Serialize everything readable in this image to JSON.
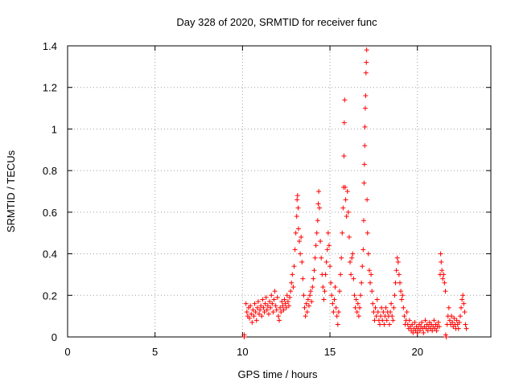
{
  "chart_data": {
    "type": "scatter",
    "title": "Day 328 of 2020, SRMTID for receiver func",
    "xlabel": "GPS time / hours",
    "ylabel": "SRMTID / TECUs",
    "xlim": [
      0,
      24.2
    ],
    "ylim": [
      0,
      1.4
    ],
    "xticks": [
      0,
      5,
      10,
      15,
      20
    ],
    "xtick_labels": [
      "0",
      "5",
      "10",
      "15",
      "20"
    ],
    "yticks": [
      0,
      0.2,
      0.4,
      0.6,
      0.8,
      1.0,
      1.2,
      1.4
    ],
    "ytick_labels": [
      "0",
      "0.2",
      "0.4",
      "0.6",
      "0.8",
      "1",
      "1.2",
      "1.4"
    ],
    "grid": true,
    "marker": "+",
    "color": "#ff0000",
    "series": [
      {
        "name": "SRMTID",
        "points": [
          [
            10.1,
            0.0
          ],
          [
            10.1,
            0.01
          ],
          [
            10.2,
            0.16
          ],
          [
            10.25,
            0.12
          ],
          [
            10.3,
            0.1
          ],
          [
            10.35,
            0.14
          ],
          [
            10.4,
            0.09
          ],
          [
            10.45,
            0.15
          ],
          [
            10.5,
            0.11
          ],
          [
            10.55,
            0.07
          ],
          [
            10.6,
            0.13
          ],
          [
            10.65,
            0.1
          ],
          [
            10.7,
            0.16
          ],
          [
            10.75,
            0.12
          ],
          [
            10.8,
            0.08
          ],
          [
            10.85,
            0.14
          ],
          [
            10.9,
            0.17
          ],
          [
            10.95,
            0.11
          ],
          [
            11.0,
            0.13
          ],
          [
            11.05,
            0.15
          ],
          [
            11.1,
            0.1
          ],
          [
            11.15,
            0.18
          ],
          [
            11.2,
            0.14
          ],
          [
            11.25,
            0.12
          ],
          [
            11.3,
            0.16
          ],
          [
            11.35,
            0.19
          ],
          [
            11.4,
            0.13
          ],
          [
            11.45,
            0.15
          ],
          [
            11.5,
            0.11
          ],
          [
            11.55,
            0.17
          ],
          [
            11.6,
            0.14
          ],
          [
            11.65,
            0.2
          ],
          [
            11.7,
            0.16
          ],
          [
            11.75,
            0.12
          ],
          [
            11.8,
            0.18
          ],
          [
            11.85,
            0.22
          ],
          [
            11.9,
            0.15
          ],
          [
            11.95,
            0.13
          ],
          [
            12.0,
            0.19
          ],
          [
            12.05,
            0.1
          ],
          [
            12.1,
            0.08
          ],
          [
            12.15,
            0.14
          ],
          [
            12.2,
            0.12
          ],
          [
            12.25,
            0.17
          ],
          [
            12.3,
            0.15
          ],
          [
            12.35,
            0.13
          ],
          [
            12.4,
            0.18
          ],
          [
            12.45,
            0.16
          ],
          [
            12.5,
            0.14
          ],
          [
            12.55,
            0.2
          ],
          [
            12.6,
            0.17
          ],
          [
            12.65,
            0.15
          ],
          [
            12.7,
            0.19
          ],
          [
            12.75,
            0.22
          ],
          [
            12.8,
            0.26
          ],
          [
            12.85,
            0.3
          ],
          [
            12.9,
            0.24
          ],
          [
            12.95,
            0.34
          ],
          [
            13.0,
            0.42
          ],
          [
            13.05,
            0.5
          ],
          [
            13.1,
            0.58
          ],
          [
            13.12,
            0.66
          ],
          [
            13.15,
            0.68
          ],
          [
            13.18,
            0.62
          ],
          [
            13.2,
            0.52
          ],
          [
            13.25,
            0.46
          ],
          [
            13.3,
            0.4
          ],
          [
            13.35,
            0.48
          ],
          [
            13.4,
            0.36
          ],
          [
            13.45,
            0.28
          ],
          [
            13.5,
            0.2
          ],
          [
            13.55,
            0.14
          ],
          [
            13.6,
            0.1
          ],
          [
            13.65,
            0.16
          ],
          [
            13.7,
            0.12
          ],
          [
            13.75,
            0.18
          ],
          [
            13.8,
            0.15
          ],
          [
            13.85,
            0.2
          ],
          [
            13.9,
            0.22
          ],
          [
            13.95,
            0.17
          ],
          [
            14.0,
            0.24
          ],
          [
            14.05,
            0.28
          ],
          [
            14.1,
            0.32
          ],
          [
            14.15,
            0.38
          ],
          [
            14.2,
            0.44
          ],
          [
            14.25,
            0.5
          ],
          [
            14.3,
            0.56
          ],
          [
            14.33,
            0.64
          ],
          [
            14.36,
            0.7
          ],
          [
            14.4,
            0.62
          ],
          [
            14.45,
            0.46
          ],
          [
            14.5,
            0.38
          ],
          [
            14.55,
            0.3
          ],
          [
            14.6,
            0.24
          ],
          [
            14.65,
            0.18
          ],
          [
            14.7,
            0.22
          ],
          [
            14.75,
            0.3
          ],
          [
            14.8,
            0.36
          ],
          [
            14.85,
            0.42
          ],
          [
            14.9,
            0.5
          ],
          [
            14.95,
            0.44
          ],
          [
            15.0,
            0.34
          ],
          [
            15.05,
            0.26
          ],
          [
            15.1,
            0.2
          ],
          [
            15.15,
            0.16
          ],
          [
            15.2,
            0.12
          ],
          [
            15.25,
            0.18
          ],
          [
            15.3,
            0.24
          ],
          [
            15.35,
            0.14
          ],
          [
            15.4,
            0.1
          ],
          [
            15.45,
            0.06
          ],
          [
            15.5,
            0.12
          ],
          [
            15.55,
            0.22
          ],
          [
            15.6,
            0.3
          ],
          [
            15.65,
            0.38
          ],
          [
            15.7,
            0.5
          ],
          [
            15.75,
            0.62
          ],
          [
            15.78,
            0.72
          ],
          [
            15.8,
            0.87
          ],
          [
            15.82,
            1.03
          ],
          [
            15.84,
            1.14
          ],
          [
            15.87,
            0.72
          ],
          [
            15.9,
            0.66
          ],
          [
            15.95,
            0.58
          ],
          [
            16.0,
            0.7
          ],
          [
            16.05,
            0.6
          ],
          [
            16.1,
            0.48
          ],
          [
            16.15,
            0.36
          ],
          [
            16.2,
            0.3
          ],
          [
            16.25,
            0.38
          ],
          [
            16.3,
            0.4
          ],
          [
            16.35,
            0.28
          ],
          [
            16.4,
            0.2
          ],
          [
            16.45,
            0.14
          ],
          [
            16.5,
            0.18
          ],
          [
            16.55,
            0.12
          ],
          [
            16.6,
            0.16
          ],
          [
            16.65,
            0.1
          ],
          [
            16.7,
            0.14
          ],
          [
            16.75,
            0.2
          ],
          [
            16.8,
            0.26
          ],
          [
            16.85,
            0.34
          ],
          [
            16.9,
            0.42
          ],
          [
            16.93,
            0.56
          ],
          [
            16.95,
            0.74
          ],
          [
            16.97,
            0.83
          ],
          [
            16.99,
            0.92
          ],
          [
            17.0,
            1.01
          ],
          [
            17.02,
            1.1
          ],
          [
            17.04,
            1.16
          ],
          [
            17.06,
            1.27
          ],
          [
            17.08,
            1.32
          ],
          [
            17.1,
            1.38
          ],
          [
            17.12,
            0.66
          ],
          [
            17.15,
            0.5
          ],
          [
            17.2,
            0.4
          ],
          [
            17.25,
            0.32
          ],
          [
            17.3,
            0.26
          ],
          [
            17.35,
            0.3
          ],
          [
            17.4,
            0.22
          ],
          [
            17.45,
            0.16
          ],
          [
            17.5,
            0.12
          ],
          [
            17.55,
            0.08
          ],
          [
            17.6,
            0.14
          ],
          [
            17.65,
            0.1
          ],
          [
            17.7,
            0.18
          ],
          [
            17.75,
            0.12
          ],
          [
            17.8,
            0.08
          ],
          [
            17.85,
            0.06
          ],
          [
            17.9,
            0.1
          ],
          [
            17.95,
            0.14
          ],
          [
            18.0,
            0.08
          ],
          [
            18.05,
            0.12
          ],
          [
            18.1,
            0.06
          ],
          [
            18.15,
            0.1
          ],
          [
            18.2,
            0.14
          ],
          [
            18.25,
            0.08
          ],
          [
            18.3,
            0.12
          ],
          [
            18.35,
            0.1
          ],
          [
            18.4,
            0.06
          ],
          [
            18.45,
            0.12
          ],
          [
            18.5,
            0.16
          ],
          [
            18.55,
            0.1
          ],
          [
            18.6,
            0.08
          ],
          [
            18.65,
            0.14
          ],
          [
            18.7,
            0.2
          ],
          [
            18.75,
            0.26
          ],
          [
            18.8,
            0.32
          ],
          [
            18.85,
            0.38
          ],
          [
            18.9,
            0.36
          ],
          [
            18.95,
            0.3
          ],
          [
            19.0,
            0.26
          ],
          [
            19.05,
            0.22
          ],
          [
            19.1,
            0.18
          ],
          [
            19.15,
            0.2
          ],
          [
            19.2,
            0.14
          ],
          [
            19.25,
            0.1
          ],
          [
            19.3,
            0.06
          ],
          [
            19.35,
            0.08
          ],
          [
            19.4,
            0.12
          ],
          [
            19.45,
            0.06
          ],
          [
            19.5,
            0.04
          ],
          [
            19.55,
            0.08
          ],
          [
            19.6,
            0.05
          ],
          [
            19.65,
            0.03
          ],
          [
            19.7,
            0.06
          ],
          [
            19.75,
            0.02
          ],
          [
            19.8,
            0.04
          ],
          [
            19.85,
            0.07
          ],
          [
            19.9,
            0.03
          ],
          [
            19.95,
            0.05
          ],
          [
            20.0,
            0.02
          ],
          [
            20.05,
            0.04
          ],
          [
            20.1,
            0.06
          ],
          [
            20.15,
            0.03
          ],
          [
            20.2,
            0.05
          ],
          [
            20.25,
            0.07
          ],
          [
            20.3,
            0.04
          ],
          [
            20.35,
            0.02
          ],
          [
            20.4,
            0.05
          ],
          [
            20.45,
            0.08
          ],
          [
            20.5,
            0.04
          ],
          [
            20.55,
            0.06
          ],
          [
            20.6,
            0.03
          ],
          [
            20.65,
            0.05
          ],
          [
            20.7,
            0.07
          ],
          [
            20.75,
            0.04
          ],
          [
            20.8,
            0.06
          ],
          [
            20.85,
            0.03
          ],
          [
            20.9,
            0.05
          ],
          [
            20.95,
            0.08
          ],
          [
            21.0,
            0.04
          ],
          [
            21.05,
            0.06
          ],
          [
            21.1,
            0.03
          ],
          [
            21.15,
            0.05
          ],
          [
            21.2,
            0.07
          ],
          [
            21.25,
            0.05
          ],
          [
            21.3,
            0.3
          ],
          [
            21.33,
            0.4
          ],
          [
            21.36,
            0.36
          ],
          [
            21.4,
            0.32
          ],
          [
            21.45,
            0.28
          ],
          [
            21.5,
            0.3
          ],
          [
            21.55,
            0.26
          ],
          [
            21.6,
            0.22
          ],
          [
            21.62,
            0.01
          ],
          [
            21.65,
            0.0
          ],
          [
            21.7,
            0.06
          ],
          [
            21.75,
            0.1
          ],
          [
            21.8,
            0.14
          ],
          [
            21.85,
            0.08
          ],
          [
            21.9,
            0.06
          ],
          [
            21.95,
            0.1
          ],
          [
            22.0,
            0.07
          ],
          [
            22.05,
            0.05
          ],
          [
            22.1,
            0.09
          ],
          [
            22.15,
            0.06
          ],
          [
            22.2,
            0.04
          ],
          [
            22.25,
            0.08
          ],
          [
            22.3,
            0.06
          ],
          [
            22.35,
            0.04
          ],
          [
            22.4,
            0.07
          ],
          [
            22.45,
            0.1
          ],
          [
            22.5,
            0.14
          ],
          [
            22.55,
            0.18
          ],
          [
            22.6,
            0.2
          ],
          [
            22.65,
            0.16
          ],
          [
            22.7,
            0.12
          ],
          [
            22.75,
            0.06
          ],
          [
            22.8,
            0.04
          ]
        ]
      }
    ]
  }
}
